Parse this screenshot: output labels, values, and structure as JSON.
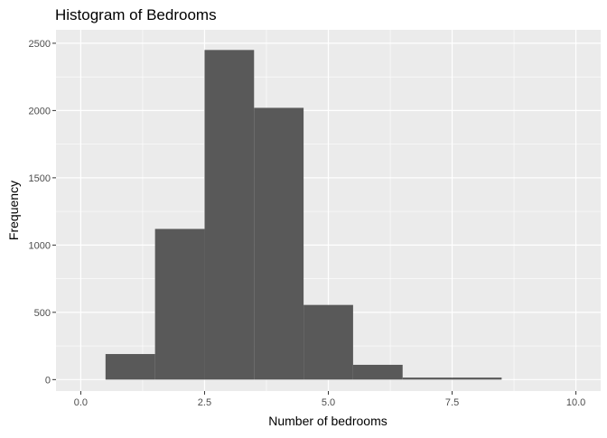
{
  "chart_data": {
    "type": "bar",
    "subtype": "histogram",
    "title": "Histogram of Bedrooms",
    "xlabel": "Number of bedrooms",
    "ylabel": "Frequency",
    "bins": [
      {
        "x0": 0.5,
        "x1": 1.5,
        "count": 190
      },
      {
        "x0": 1.5,
        "x1": 2.5,
        "count": 1120
      },
      {
        "x0": 2.5,
        "x1": 3.5,
        "count": 2450
      },
      {
        "x0": 3.5,
        "x1": 4.5,
        "count": 2020
      },
      {
        "x0": 4.5,
        "x1": 5.5,
        "count": 555
      },
      {
        "x0": 5.5,
        "x1": 6.5,
        "count": 110
      },
      {
        "x0": 6.5,
        "x1": 7.5,
        "count": 15
      },
      {
        "x0": 7.5,
        "x1": 8.5,
        "count": 15
      }
    ],
    "xlim": [
      -0.5,
      10.5
    ],
    "ylim": [
      -85,
      2600
    ],
    "x_ticks": [
      0,
      2.5,
      5,
      7.5,
      10
    ],
    "x_tick_labels": [
      "0.0",
      "2.5",
      "5.0",
      "7.5",
      "10.0"
    ],
    "y_ticks": [
      0,
      500,
      1000,
      1500,
      2000,
      2500
    ],
    "y_tick_labels": [
      "0",
      "500",
      "1000",
      "1500",
      "2000",
      "2500"
    ],
    "grid": true,
    "colors": {
      "panel_background": "#ebebeb",
      "grid_line": "#ffffff",
      "bar_fill": "#595959",
      "axis_text": "#4d4d4d",
      "title_text": "#000000"
    }
  }
}
